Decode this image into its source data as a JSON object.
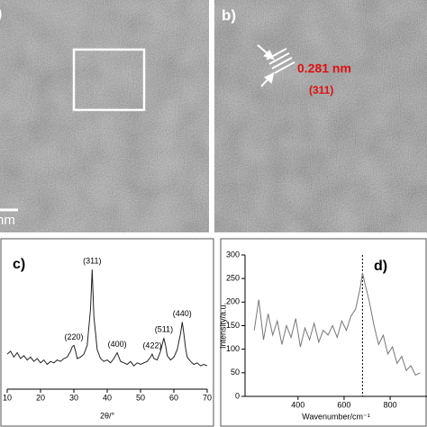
{
  "panels": {
    "a": {
      "label": ")",
      "scale_label": "nm"
    },
    "b": {
      "label": "b)",
      "spacing": "0.281 nm",
      "plane": "(311)"
    }
  },
  "chart_data": [
    {
      "type": "line",
      "label": "c)",
      "xlabel": "2θ/°",
      "x": [
        10,
        11,
        12,
        13,
        14,
        15,
        16,
        17,
        18,
        19,
        20,
        21,
        22,
        23,
        24,
        25,
        26,
        27,
        28,
        29,
        29.5,
        30,
        30.5,
        31,
        32,
        33,
        34,
        35,
        35.5,
        36,
        37,
        38,
        39,
        40,
        41,
        42,
        43,
        44,
        45,
        46,
        47,
        48,
        49,
        50,
        51,
        52,
        53,
        53.5,
        54,
        55,
        56,
        57,
        57.5,
        58,
        59,
        60,
        61,
        62,
        62.5,
        63,
        63.5,
        64,
        65,
        66,
        67,
        68,
        69,
        70
      ],
      "series": [
        {
          "color": "#222222",
          "values": [
            24,
            26,
            22,
            25,
            21,
            23,
            20,
            22,
            19,
            21,
            18,
            20,
            17,
            19,
            18,
            20,
            19,
            21,
            22,
            26,
            29,
            30,
            26,
            21,
            22,
            24,
            30,
            55,
            82,
            50,
            27,
            21,
            19,
            20,
            18,
            21,
            25,
            19,
            18,
            17,
            19,
            16,
            18,
            17,
            18,
            19,
            22,
            24,
            21,
            20,
            26,
            35,
            30,
            23,
            20,
            22,
            27,
            38,
            46,
            38,
            28,
            22,
            19,
            17,
            18,
            16,
            17,
            16
          ]
        }
      ],
      "xlim": [
        10,
        70
      ],
      "xticks": [
        10,
        20,
        30,
        40,
        50,
        60,
        70
      ],
      "ylim": [
        0,
        100
      ],
      "annotations": [
        {
          "text": "(220)",
          "x": 30
        },
        {
          "text": "(311)",
          "x": 35.5
        },
        {
          "text": "(400)",
          "x": 43
        },
        {
          "text": "(422)",
          "x": 53.5
        },
        {
          "text": "(511)",
          "x": 57
        },
        {
          "text": "(440)",
          "x": 62.5
        }
      ]
    },
    {
      "type": "line",
      "label": "d)",
      "xlabel": "Wavenumber/cm⁻¹",
      "ylabel": "Intensity/a.u.",
      "x": [
        210,
        230,
        250,
        270,
        290,
        310,
        330,
        350,
        370,
        390,
        410,
        430,
        450,
        470,
        490,
        510,
        530,
        550,
        570,
        590,
        610,
        630,
        650,
        670,
        680,
        690,
        710,
        730,
        750,
        770,
        790,
        810,
        830,
        850,
        870,
        890,
        910,
        930
      ],
      "series": [
        {
          "color": "#777777",
          "values": [
            140,
            205,
            120,
            175,
            130,
            160,
            110,
            150,
            125,
            165,
            105,
            145,
            120,
            155,
            115,
            140,
            130,
            150,
            125,
            160,
            140,
            170,
            185,
            230,
            262,
            240,
            200,
            150,
            110,
            130,
            90,
            105,
            70,
            85,
            55,
            65,
            45,
            50
          ]
        }
      ],
      "xlim": [
        170,
        960
      ],
      "xticks": [
        400,
        600,
        800
      ],
      "ylim": [
        0,
        300
      ],
      "yticks": [
        0,
        50,
        100,
        150,
        200,
        250,
        300
      ],
      "vline": 680
    }
  ]
}
